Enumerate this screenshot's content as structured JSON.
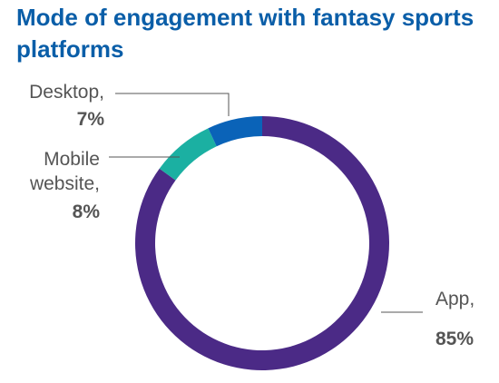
{
  "title": "Mode of engagement with fantasy sports platforms",
  "chart_data": {
    "type": "pie",
    "variant": "donut",
    "title": "Mode of engagement with fantasy sports platforms",
    "slices": [
      {
        "label": "App",
        "value": 85,
        "value_label": "85%",
        "color": "#4b2a86"
      },
      {
        "label": "Mobile website",
        "value": 8,
        "value_label": "8%",
        "color": "#1bb0a2"
      },
      {
        "label": "Desktop",
        "value": 7,
        "value_label": "7%",
        "color": "#0a63b8"
      }
    ],
    "legend": "none",
    "labels": "outside with leader lines"
  }
}
